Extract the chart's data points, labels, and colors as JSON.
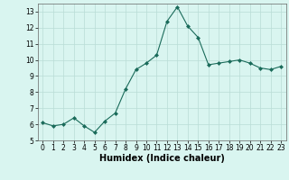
{
  "x": [
    0,
    1,
    2,
    3,
    4,
    5,
    6,
    7,
    8,
    9,
    10,
    11,
    12,
    13,
    14,
    15,
    16,
    17,
    18,
    19,
    20,
    21,
    22,
    23
  ],
  "y": [
    6.1,
    5.9,
    6.0,
    6.4,
    5.9,
    5.5,
    6.2,
    6.7,
    8.2,
    9.4,
    9.8,
    10.3,
    12.4,
    13.3,
    12.1,
    11.4,
    9.7,
    9.8,
    9.9,
    10.0,
    9.8,
    9.5,
    9.4,
    9.6
  ],
  "line_color": "#1a6b5a",
  "marker_color": "#1a6b5a",
  "bg_color": "#d9f5f0",
  "grid_color": "#b8dcd6",
  "xlabel": "Humidex (Indice chaleur)",
  "ylim": [
    5,
    13.5
  ],
  "xlim": [
    -0.5,
    23.5
  ],
  "yticks": [
    5,
    6,
    7,
    8,
    9,
    10,
    11,
    12,
    13
  ],
  "xticks": [
    0,
    1,
    2,
    3,
    4,
    5,
    6,
    7,
    8,
    9,
    10,
    11,
    12,
    13,
    14,
    15,
    16,
    17,
    18,
    19,
    20,
    21,
    22,
    23
  ],
  "xlabel_fontsize": 7,
  "tick_fontsize": 5.5
}
